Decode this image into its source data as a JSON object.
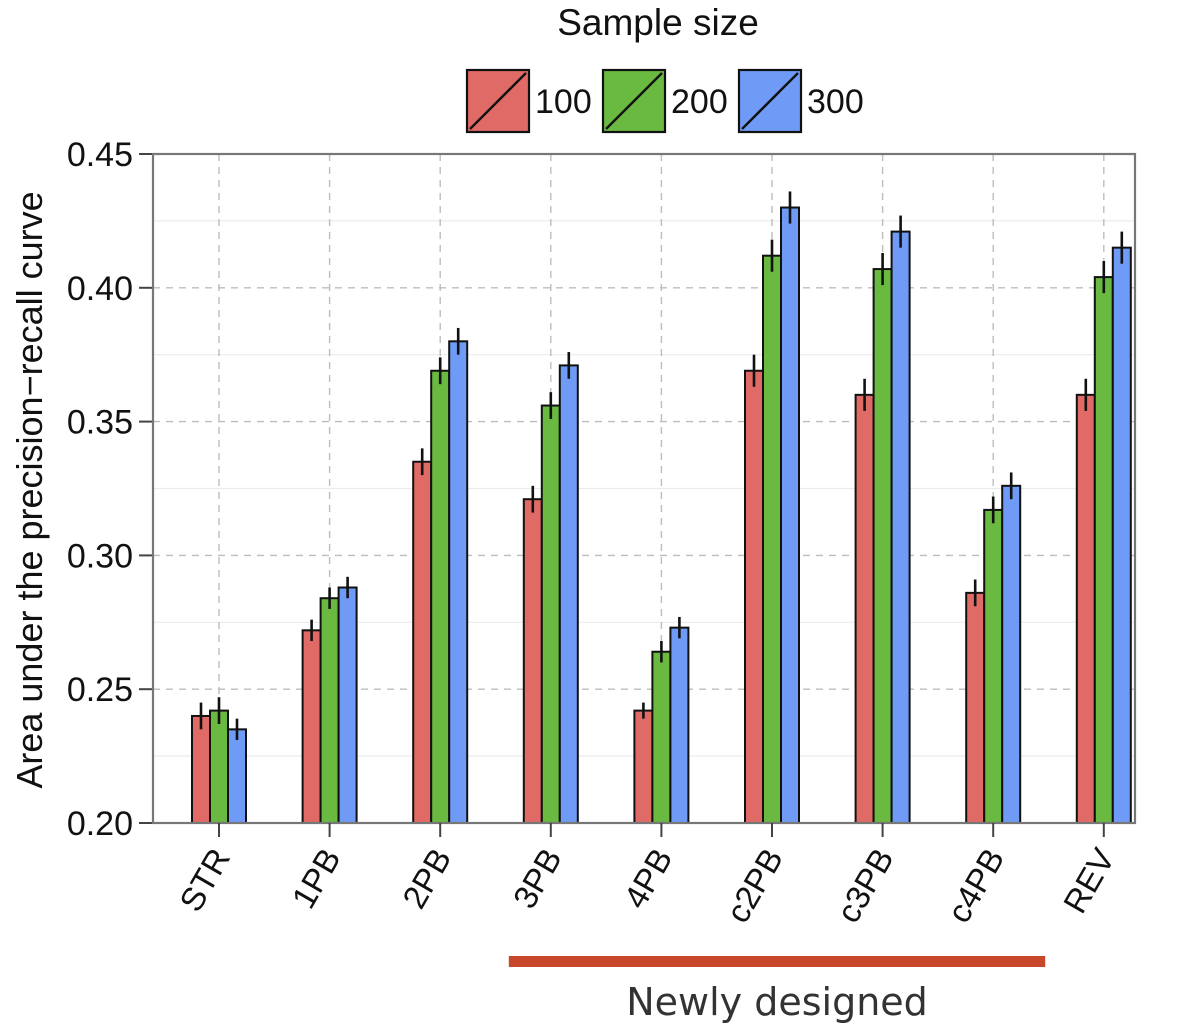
{
  "chart_data": {
    "type": "bar",
    "ylabel": "Area under the precision−recall curve",
    "xlabel": "",
    "ylim": [
      0.2,
      0.45
    ],
    "yticks": [
      "0.20",
      "0.25",
      "0.30",
      "0.35",
      "0.40",
      "0.45"
    ],
    "grid": true,
    "categories": [
      "STR",
      "1PB",
      "2PB",
      "3PB",
      "4PB",
      "c2PB",
      "c3PB",
      "c4PB",
      "REV"
    ],
    "legend": {
      "title": "Sample size",
      "placement": "top-center"
    },
    "series": [
      {
        "name": "100",
        "color": "#E06A66",
        "values": [
          0.24,
          0.272,
          0.335,
          0.321,
          0.242,
          0.369,
          0.36,
          0.286,
          0.36
        ],
        "err": [
          0.005,
          0.004,
          0.005,
          0.005,
          0.003,
          0.006,
          0.006,
          0.005,
          0.006
        ]
      },
      {
        "name": "200",
        "color": "#6AB941",
        "values": [
          0.242,
          0.284,
          0.369,
          0.356,
          0.264,
          0.412,
          0.407,
          0.317,
          0.404
        ],
        "err": [
          0.005,
          0.004,
          0.005,
          0.005,
          0.004,
          0.006,
          0.006,
          0.005,
          0.006
        ]
      },
      {
        "name": "300",
        "color": "#6F9BF7",
        "values": [
          0.235,
          0.288,
          0.38,
          0.371,
          0.273,
          0.43,
          0.421,
          0.326,
          0.415
        ],
        "err": [
          0.004,
          0.004,
          0.005,
          0.005,
          0.004,
          0.006,
          0.006,
          0.005,
          0.006
        ]
      }
    ],
    "annotation": {
      "text": "Newly designed",
      "from_category": "3PB",
      "to_category": "c4PB",
      "color": "#C8472B"
    }
  }
}
